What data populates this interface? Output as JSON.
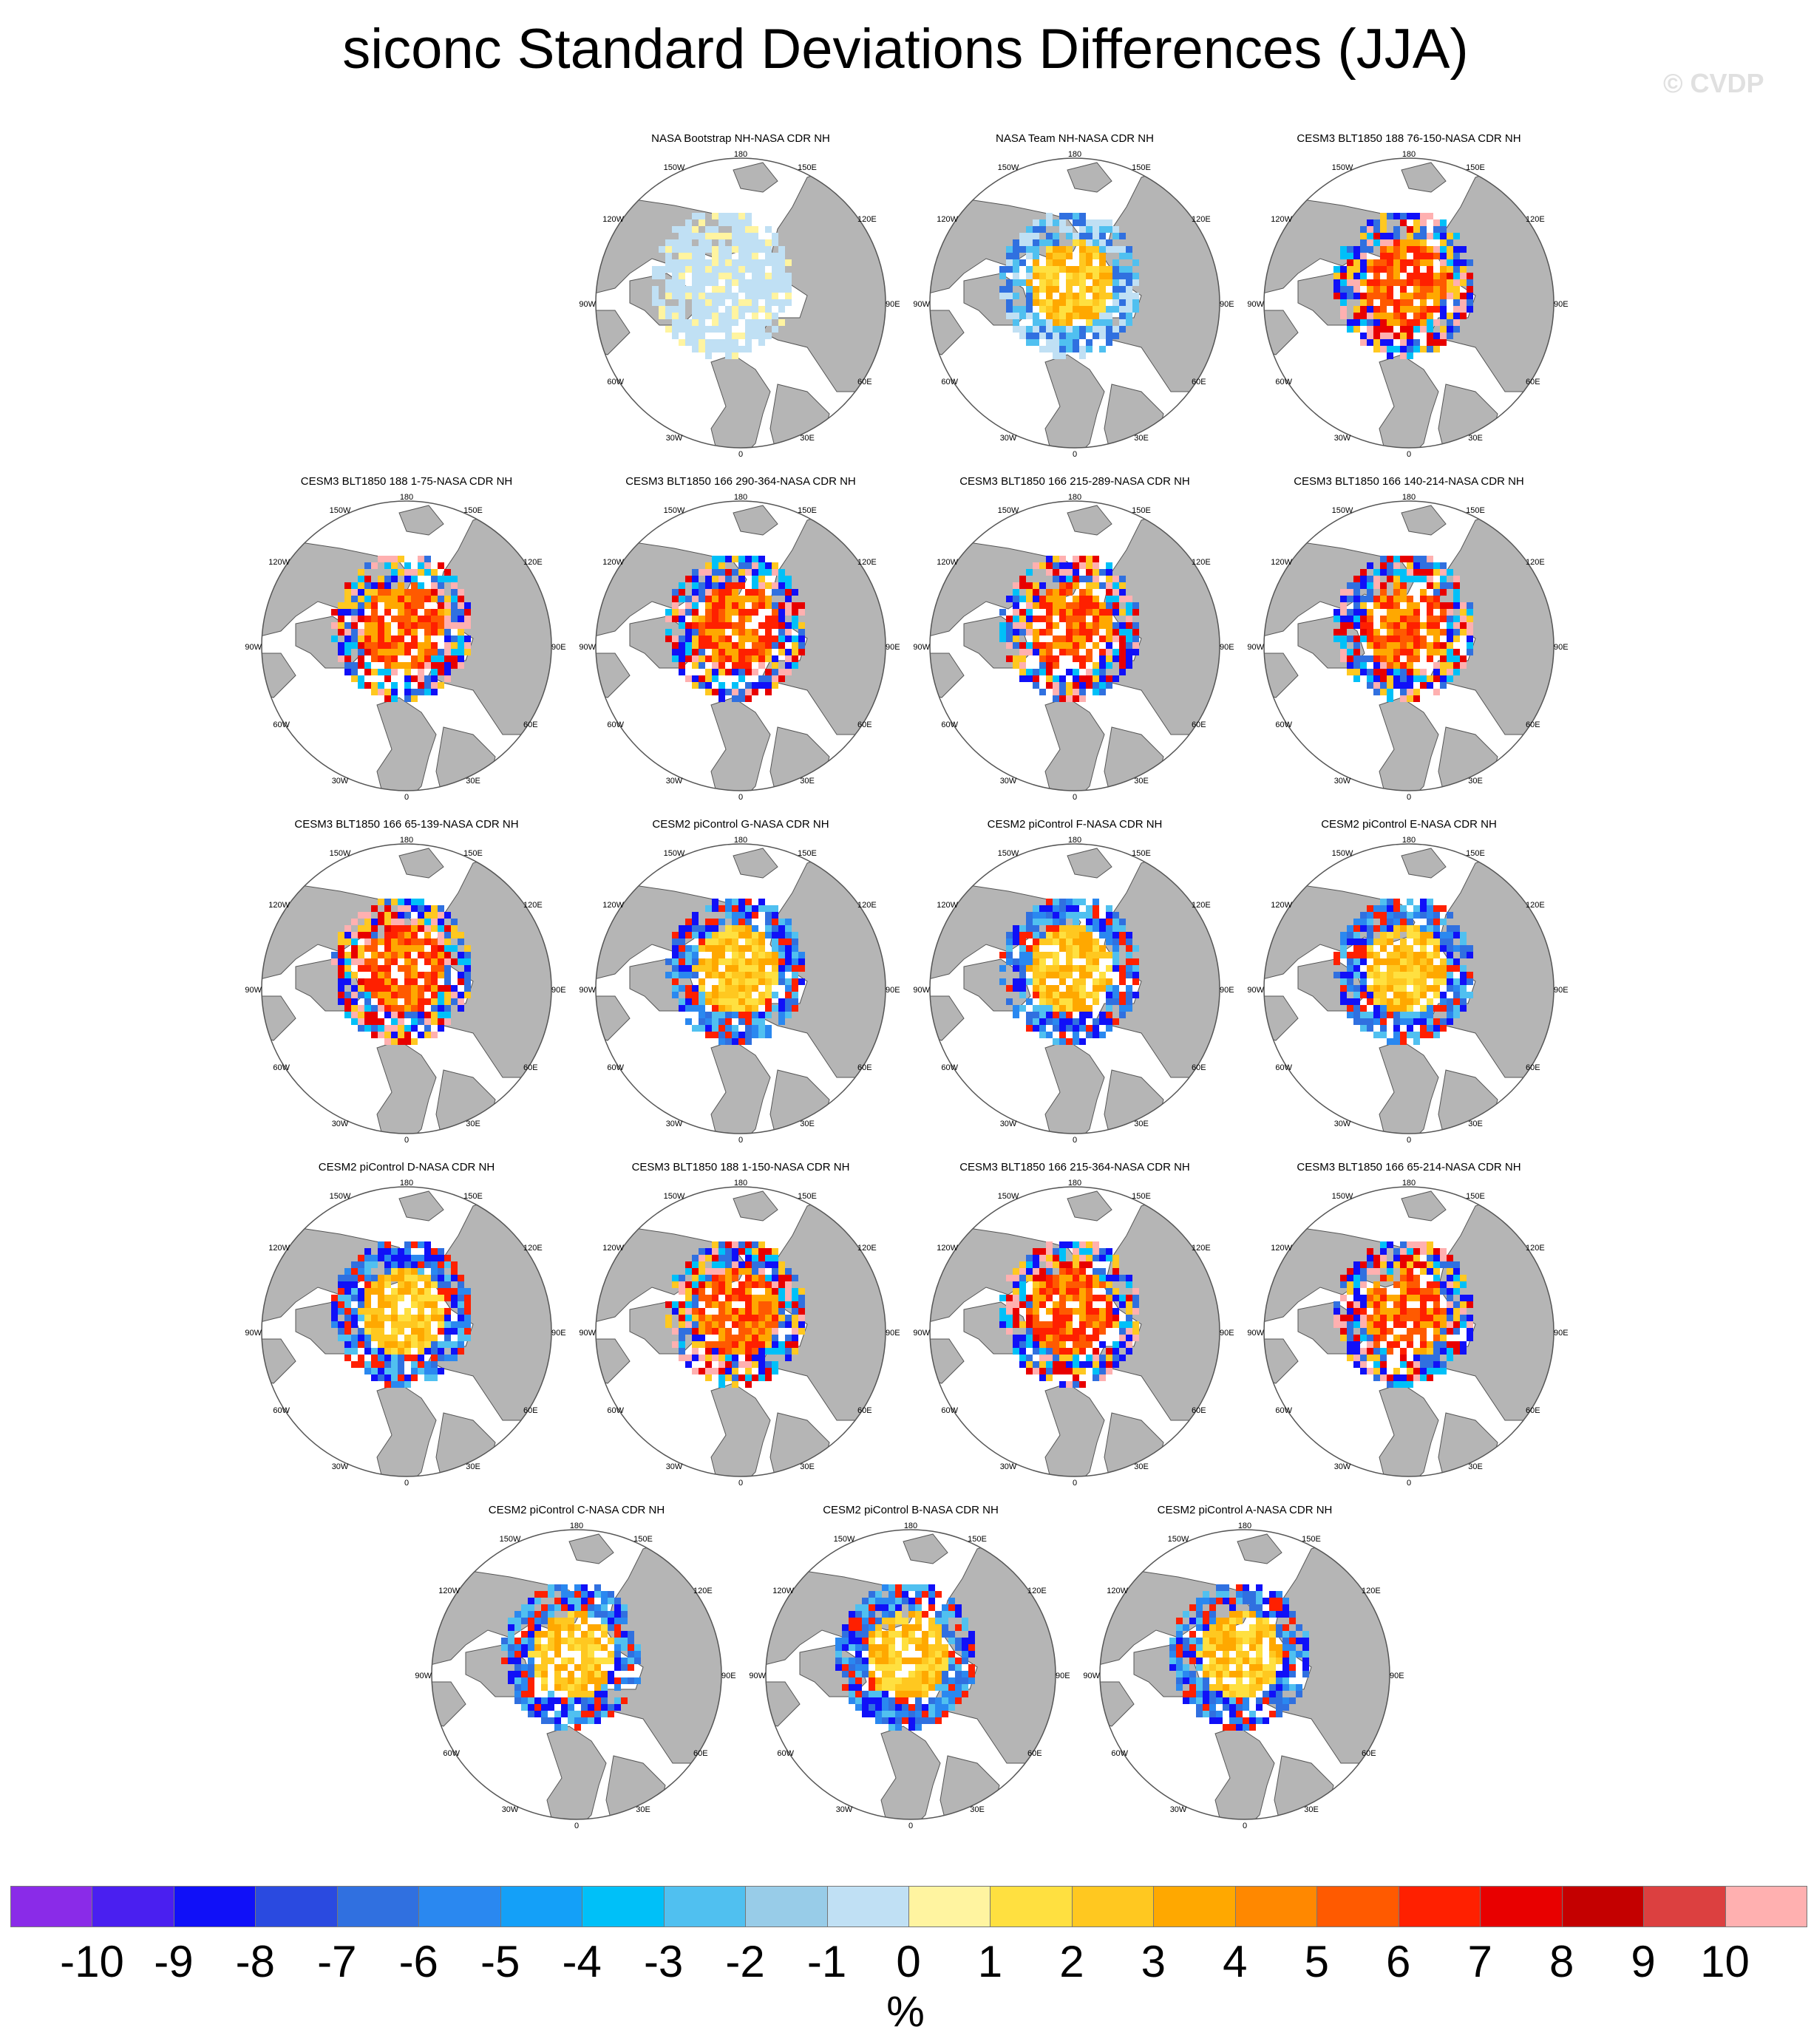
{
  "figure": {
    "title": "siconc Standard Deviations Differences (JJA)",
    "watermark": "© CVDP",
    "units": "%"
  },
  "map_labels": {
    "top": "180",
    "upper_left": "150W",
    "upper_right": "150E",
    "mid_upper_left": "120W",
    "mid_upper_right": "120E",
    "left": "90W",
    "right": "90E",
    "mid_lower_left": "60W",
    "mid_lower_right": "60E",
    "lower_left": "30W",
    "lower_right": "30E",
    "bottom": "0"
  },
  "panels": [
    {
      "title": "NASA Bootstrap NH-NASA CDR NH",
      "pattern": "bootstrap"
    },
    {
      "title": "NASA Team NH-NASA CDR NH",
      "pattern": "team"
    },
    {
      "title": "CESM3 BLT1850 188 76-150-NASA CDR NH",
      "pattern": "cesm3"
    },
    {
      "title": "CESM3 BLT1850 188 1-75-NASA CDR NH",
      "pattern": "cesm3"
    },
    {
      "title": "CESM3 BLT1850 166 290-364-NASA CDR NH",
      "pattern": "cesm3"
    },
    {
      "title": "CESM3 BLT1850 166 215-289-NASA CDR NH",
      "pattern": "cesm3"
    },
    {
      "title": "CESM3 BLT1850 166 140-214-NASA CDR NH",
      "pattern": "cesm3"
    },
    {
      "title": "CESM3 BLT1850 166 65-139-NASA CDR NH",
      "pattern": "cesm3"
    },
    {
      "title": "CESM2 piControl G-NASA CDR NH",
      "pattern": "cesm2"
    },
    {
      "title": "CESM2 piControl F-NASA CDR NH",
      "pattern": "cesm2"
    },
    {
      "title": "CESM2 piControl E-NASA CDR NH",
      "pattern": "cesm2"
    },
    {
      "title": "CESM2 piControl D-NASA CDR NH",
      "pattern": "cesm2"
    },
    {
      "title": "CESM3 BLT1850 188 1-150-NASA CDR NH",
      "pattern": "cesm3"
    },
    {
      "title": "CESM3 BLT1850 166 215-364-NASA CDR NH",
      "pattern": "cesm3"
    },
    {
      "title": "CESM3 BLT1850 166 65-214-NASA CDR NH",
      "pattern": "cesm3"
    },
    {
      "title": "CESM2 piControl C-NASA CDR NH",
      "pattern": "cesm2"
    },
    {
      "title": "CESM2 piControl B-NASA CDR NH",
      "pattern": "cesm2"
    },
    {
      "title": "CESM2 piControl A-NASA CDR NH",
      "pattern": "cesm2"
    }
  ],
  "colorbar": {
    "ticks": [
      "-10",
      "-9",
      "-8",
      "-7",
      "-6",
      "-5",
      "-4",
      "-3",
      "-2",
      "-1",
      "0",
      "1",
      "2",
      "3",
      "4",
      "5",
      "6",
      "7",
      "8",
      "9",
      "10"
    ],
    "colors": [
      "#8a2be8",
      "#4a1ff0",
      "#1010f8",
      "#2a4ae0",
      "#3070e0",
      "#2a88f0",
      "#14a0f8",
      "#00c0f8",
      "#50c0f0",
      "#98cce8",
      "#c0e0f4",
      "#fff4a0",
      "#ffe040",
      "#ffc820",
      "#ffa800",
      "#ff8800",
      "#ff5a00",
      "#ff2000",
      "#e80000",
      "#c40000",
      "#dc4040",
      "#ffb0b0"
    ]
  }
}
